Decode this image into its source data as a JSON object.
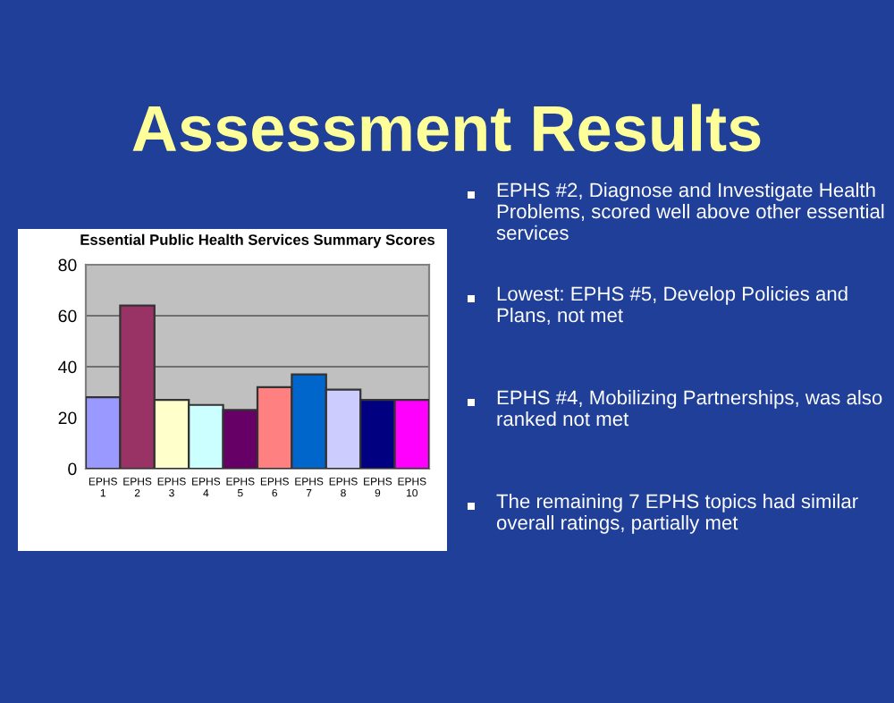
{
  "chart_data": {
    "type": "bar",
    "title": "Essential Public Health Services Summary Scores",
    "categories": [
      "EPHS\n1",
      "EPHS\n2",
      "EPHS\n3",
      "EPHS\n4",
      "EPHS\n5",
      "EPHS\n6",
      "EPHS\n7",
      "EPHS\n8",
      "EPHS\n9",
      "EPHS\n10"
    ],
    "values": [
      28,
      64,
      27,
      25,
      23,
      32,
      37,
      31,
      27,
      27
    ],
    "colors": [
      "#9999ff",
      "#993366",
      "#ffffcc",
      "#ccffff",
      "#660066",
      "#ff8080",
      "#0066cc",
      "#ccccff",
      "#000080",
      "#ff00ff"
    ],
    "ylim": [
      0,
      80
    ],
    "yticks": [
      0,
      20,
      40,
      60,
      80
    ],
    "grid": "y",
    "annotations": [
      "Assessment Results",
      "EPHS #2, Diagnose and Investigate Health Problems, scored well above other essential services",
      "Lowest: EPHS #5, Develop Policies and Plans, not met",
      "EPHS #4, Mobilizing Partnerships, was also ranked not met",
      "The remaining 7 EPHS topics had similar overall ratings, partially met"
    ]
  }
}
